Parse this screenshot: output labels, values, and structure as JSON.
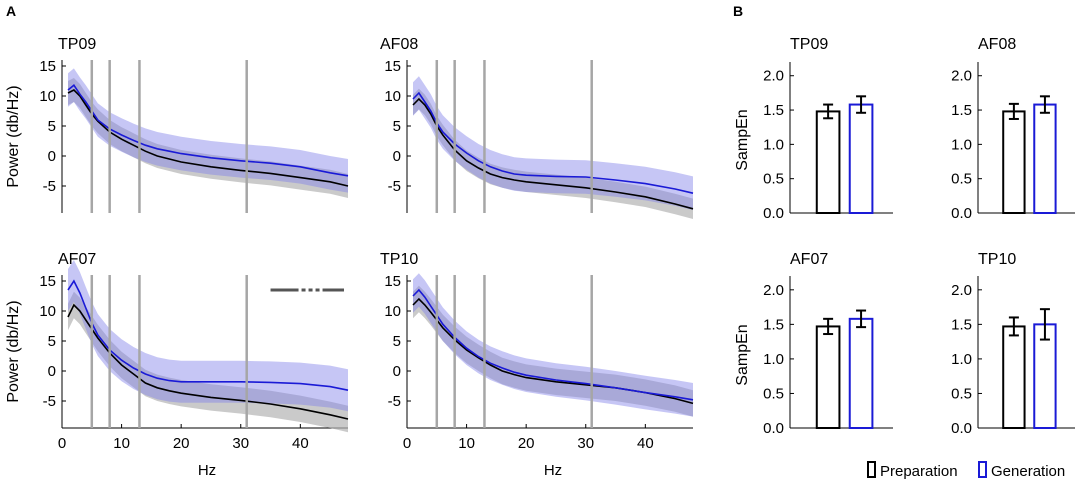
{
  "panel_labels": {
    "a": "A",
    "b": "B"
  },
  "colors": {
    "prep": "#000000",
    "gen": "#1a1ad6",
    "prep_band": "#b3b3b3",
    "gen_band": "#8080e8",
    "vline": "#a6a6a6",
    "sig": "#555555"
  },
  "legend": {
    "prep": "Preparation",
    "gen": "Generation"
  },
  "chart_data": [
    {
      "id": "psd_tp09",
      "type": "line",
      "title": "TP09",
      "xlabel": "",
      "ylabel": "Power (db/Hz)",
      "xlim": [
        0,
        48
      ],
      "ylim": [
        -9.5,
        16
      ],
      "xticks": [],
      "yticks": [
        15,
        10,
        5,
        0,
        -5
      ],
      "band_lines": [
        5,
        8,
        13,
        31
      ],
      "x": [
        1,
        2,
        3,
        4,
        5,
        6,
        8,
        10,
        12,
        14,
        16,
        18,
        20,
        25,
        30,
        35,
        40,
        45,
        48
      ],
      "series": [
        {
          "name": "Preparation",
          "values": [
            10.5,
            11,
            10,
            8.5,
            7,
            5.8,
            4,
            2.8,
            1.8,
            0.8,
            0,
            -0.5,
            -1,
            -1.8,
            -2.4,
            -2.9,
            -3.6,
            -4.3,
            -5
          ],
          "band": 2
        },
        {
          "name": "Generation",
          "values": [
            11,
            11.8,
            10.3,
            9,
            7.5,
            6,
            4.5,
            3.5,
            2.6,
            1.8,
            1.2,
            0.8,
            0.4,
            -0.3,
            -0.8,
            -1.2,
            -1.8,
            -2.8,
            -3.3
          ],
          "band": 2.8
        }
      ]
    },
    {
      "id": "psd_af08",
      "type": "line",
      "title": "AF08",
      "xlabel": "",
      "ylabel": "",
      "xlim": [
        0,
        48
      ],
      "ylim": [
        -9.5,
        16
      ],
      "xticks": [],
      "yticks": [
        15,
        10,
        5,
        0,
        -5
      ],
      "band_lines": [
        5,
        8,
        13,
        31
      ],
      "x": [
        1,
        2,
        3,
        4,
        5,
        6,
        8,
        10,
        12,
        14,
        16,
        18,
        20,
        25,
        30,
        35,
        40,
        45,
        48
      ],
      "series": [
        {
          "name": "Preparation",
          "values": [
            8.5,
            9.5,
            8.5,
            7,
            5,
            3.5,
            1,
            -0.8,
            -2,
            -3,
            -3.6,
            -4,
            -4.3,
            -4.8,
            -5.3,
            -6,
            -6.8,
            -8,
            -8.8
          ],
          "band": 1.7
        },
        {
          "name": "Generation",
          "values": [
            9.5,
            10.5,
            9,
            7.5,
            5.5,
            4,
            2,
            0.5,
            -0.8,
            -1.8,
            -2.5,
            -3,
            -3.2,
            -3.4,
            -3.5,
            -4,
            -4.6,
            -5.5,
            -6.2
          ],
          "band": 2.8
        }
      ]
    },
    {
      "id": "psd_af07",
      "type": "line",
      "title": "AF07",
      "xlabel": "Hz",
      "ylabel": "Power (db/Hz)",
      "xlim": [
        0,
        48
      ],
      "ylim": [
        -9.5,
        16
      ],
      "xticks": [
        0,
        10,
        20,
        30,
        40
      ],
      "yticks": [
        15,
        10,
        5,
        0,
        -5
      ],
      "band_lines": [
        5,
        8,
        13,
        31
      ],
      "significance": {
        "x_start": 35,
        "x_end": 48,
        "y": 13.5
      },
      "x": [
        1,
        2,
        3,
        4,
        5,
        6,
        8,
        10,
        12,
        14,
        16,
        18,
        20,
        25,
        30,
        35,
        40,
        45,
        48
      ],
      "series": [
        {
          "name": "Preparation",
          "values": [
            9,
            11,
            10,
            8.5,
            7,
            5.5,
            3,
            1,
            -0.5,
            -2,
            -2.8,
            -3.3,
            -3.7,
            -4.4,
            -4.9,
            -5.5,
            -6.3,
            -7.3,
            -8
          ],
          "band": 2.2
        },
        {
          "name": "Generation",
          "values": [
            13.5,
            15,
            13,
            10.5,
            8,
            6,
            3.5,
            1.8,
            0.5,
            -0.5,
            -1.2,
            -1.6,
            -1.8,
            -1.8,
            -1.8,
            -1.9,
            -2.1,
            -2.6,
            -3.2
          ],
          "band": 3.5
        }
      ]
    },
    {
      "id": "psd_tp10",
      "type": "line",
      "title": "TP10",
      "xlabel": "Hz",
      "ylabel": "",
      "xlim": [
        0,
        48
      ],
      "ylim": [
        -9.5,
        16
      ],
      "xticks": [
        0,
        10,
        20,
        30,
        40
      ],
      "yticks": [
        15,
        10,
        5,
        0,
        -5
      ],
      "band_lines": [
        5,
        8,
        13,
        31
      ],
      "x": [
        1,
        2,
        3,
        4,
        5,
        6,
        8,
        10,
        12,
        14,
        16,
        18,
        20,
        25,
        30,
        35,
        40,
        45,
        48
      ],
      "series": [
        {
          "name": "Preparation",
          "values": [
            11,
            12,
            11,
            9.8,
            8.5,
            7.2,
            5.2,
            3.5,
            2.2,
            1,
            0,
            -0.6,
            -1.1,
            -1.8,
            -2.3,
            -2.8,
            -3.6,
            -4.6,
            -5.4
          ],
          "band": 2.2
        },
        {
          "name": "Generation",
          "values": [
            12.5,
            13.5,
            12.3,
            10.8,
            9.3,
            7.8,
            5.6,
            3.8,
            2.4,
            1.3,
            0.5,
            -0.2,
            -0.7,
            -1.5,
            -2.1,
            -2.8,
            -3.6,
            -4.3,
            -4.8
          ],
          "band": 2.8
        }
      ]
    },
    {
      "id": "sampen_tp09",
      "type": "bar",
      "title": "TP09",
      "ylabel": "SampEn",
      "ylim": [
        0,
        2.2
      ],
      "yticks": [
        0,
        0.5,
        1.0,
        1.5,
        2.0
      ],
      "categories": [
        "Preparation",
        "Generation"
      ],
      "values": [
        1.48,
        1.58
      ],
      "errors": [
        0.1,
        0.12
      ]
    },
    {
      "id": "sampen_af08",
      "type": "bar",
      "title": "AF08",
      "ylabel": "",
      "ylim": [
        0,
        2.2
      ],
      "yticks": [
        0,
        0.5,
        1.0,
        1.5,
        2.0
      ],
      "categories": [
        "Preparation",
        "Generation"
      ],
      "values": [
        1.48,
        1.58
      ],
      "errors": [
        0.11,
        0.12
      ]
    },
    {
      "id": "sampen_af07",
      "type": "bar",
      "title": "AF07",
      "ylabel": "SampEn",
      "ylim": [
        0,
        2.2
      ],
      "yticks": [
        0,
        0.5,
        1.0,
        1.5,
        2.0
      ],
      "categories": [
        "Preparation",
        "Generation"
      ],
      "values": [
        1.47,
        1.58
      ],
      "errors": [
        0.11,
        0.12
      ]
    },
    {
      "id": "sampen_tp10",
      "type": "bar",
      "title": "TP10",
      "ylabel": "",
      "ylim": [
        0,
        2.2
      ],
      "yticks": [
        0,
        0.5,
        1.0,
        1.5,
        2.0
      ],
      "categories": [
        "Preparation",
        "Generation"
      ],
      "values": [
        1.47,
        1.5
      ],
      "errors": [
        0.13,
        0.22
      ]
    }
  ]
}
